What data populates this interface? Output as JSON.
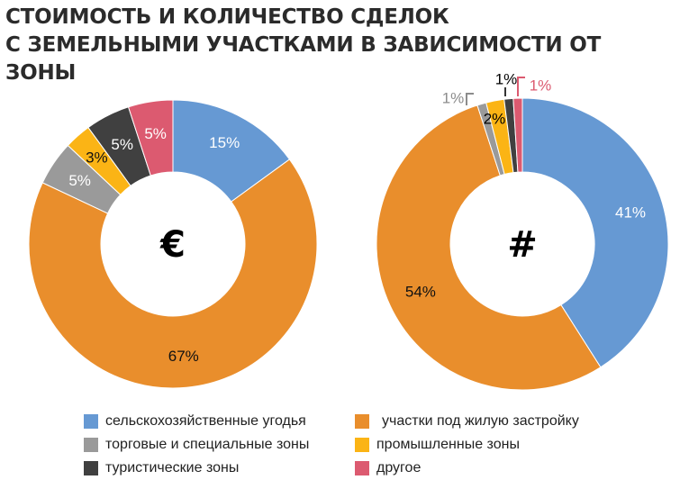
{
  "title": {
    "line1": "СТОИМОСТЬ И КОЛИЧЕСТВО СДЕЛОК",
    "line2": "С ЗЕМЕЛЬНЫМИ УЧАСТКАМИ В ЗАВИСИМОСТИ ОТ ЗОНЫ"
  },
  "chart_data": [
    {
      "type": "pie",
      "variant": "donut",
      "center_label": "€",
      "categories": [
        "сельскохозяйственные угодья",
        "участки под жилую застройку",
        "торговые и специальные зоны",
        "промышленные зоны",
        "туристические зоны",
        "другое"
      ],
      "values": [
        15,
        67,
        5,
        3,
        5,
        5
      ],
      "labels": [
        "15%",
        "67%",
        "5%",
        "3%",
        "5%",
        "5%"
      ],
      "colors": [
        "#6699d3",
        "#e98e2c",
        "#9a9a9a",
        "#fbb415",
        "#404040",
        "#dc5a70"
      ]
    },
    {
      "type": "pie",
      "variant": "donut",
      "center_label": "#",
      "categories": [
        "сельскохозяйственные угодья",
        "участки под жилую застройку",
        "торговые и специальные зоны",
        "промышленные зоны",
        "туристические зоны",
        "другое"
      ],
      "values": [
        41,
        54,
        1,
        2,
        1,
        1
      ],
      "labels": [
        "41%",
        "54%",
        "1%",
        "2%",
        "1%",
        "1%"
      ],
      "colors": [
        "#6699d3",
        "#e98e2c",
        "#9a9a9a",
        "#fbb415",
        "#404040",
        "#dc5a70"
      ]
    }
  ],
  "legend": [
    {
      "label": "сельскохозяйственные угодья",
      "color": "#6699d3"
    },
    {
      "label": "участки под жилую застройку",
      "color": "#e98e2c"
    },
    {
      "label": "торговые и специальные зоны",
      "color": "#9a9a9a"
    },
    {
      "label": "промышленные зоны",
      "color": "#fbb415"
    },
    {
      "label": "туристические зоны",
      "color": "#404040"
    },
    {
      "label": "другое",
      "color": "#dc5a70"
    }
  ]
}
